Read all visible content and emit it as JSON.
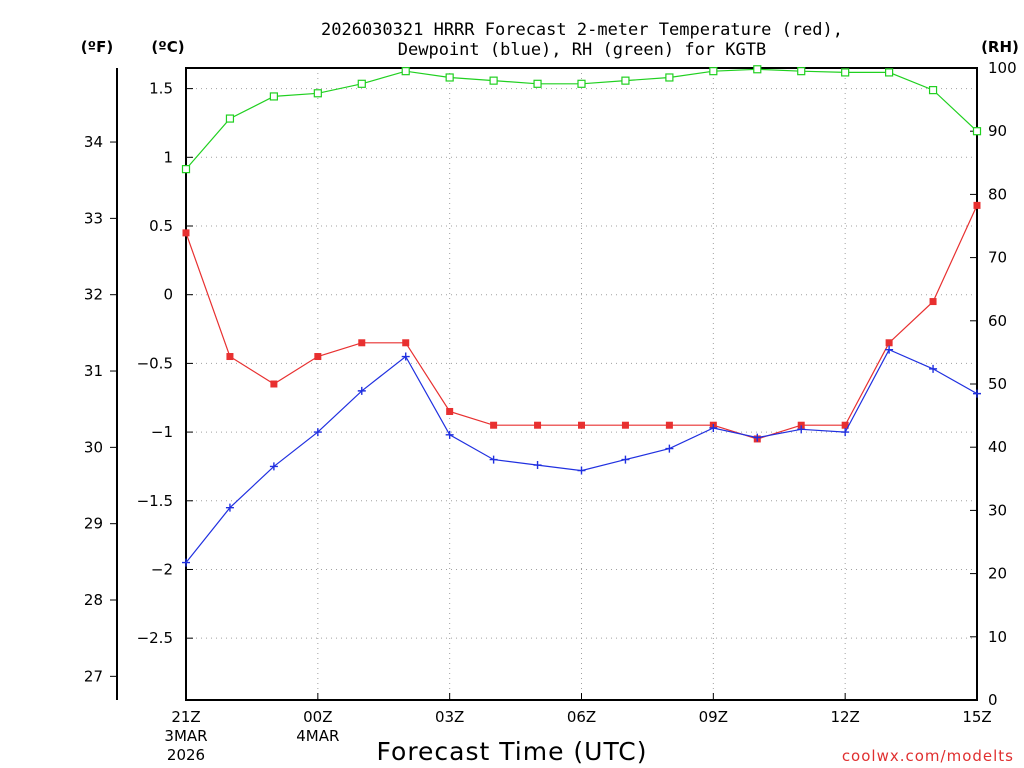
{
  "chart_data": {
    "type": "line",
    "title_line1": "2026030321 HRRR Forecast 2-meter Temperature (red),",
    "title_line2": "Dewpoint (blue), RH (green) for KGTB",
    "xlabel": "Forecast Time (UTC)",
    "credit": "coolwx.com/modelts",
    "units": {
      "fahrenheit": "(ºF)",
      "celsius": "(ºC)",
      "rh": "(RH)"
    },
    "x_hours": [
      0,
      1,
      2,
      3,
      4,
      5,
      6,
      7,
      8,
      9,
      10,
      11,
      12,
      13,
      14,
      15,
      16,
      17,
      18
    ],
    "x_ticks": [
      {
        "hour": 0,
        "label": "21Z",
        "date1": "3MAR",
        "date2": "2026"
      },
      {
        "hour": 3,
        "label": "00Z",
        "date1": "4MAR",
        "date2": ""
      },
      {
        "hour": 6,
        "label": "03Z",
        "date1": "",
        "date2": ""
      },
      {
        "hour": 9,
        "label": "06Z",
        "date1": "",
        "date2": ""
      },
      {
        "hour": 12,
        "label": "09Z",
        "date1": "",
        "date2": ""
      },
      {
        "hour": 15,
        "label": "12Z",
        "date1": "",
        "date2": ""
      },
      {
        "hour": 18,
        "label": "15Z",
        "date1": "",
        "date2": ""
      }
    ],
    "xlim": [
      0,
      18
    ],
    "celsius_axis": {
      "ylim": [
        -2.95,
        1.65
      ],
      "ticks": [
        1.5,
        1,
        0.5,
        0,
        -0.5,
        -1,
        -1.5,
        -2,
        -2.5
      ],
      "tick_labels": [
        "1.5",
        "1",
        "0.5",
        "0",
        "−0.5",
        "−1",
        "−1.5",
        "−2",
        "−2.5"
      ]
    },
    "fahrenheit_axis": {
      "ticks": [
        34,
        33,
        32,
        31,
        30,
        29,
        28,
        27
      ],
      "tick_labels": [
        "34",
        "33",
        "32",
        "31",
        "30",
        "29",
        "28",
        "27"
      ]
    },
    "rh_axis": {
      "ylim": [
        0,
        100
      ],
      "ticks": [
        100,
        90,
        80,
        70,
        60,
        50,
        40,
        30,
        20,
        10,
        0
      ],
      "tick_labels": [
        "100",
        "90",
        "80",
        "70",
        "60",
        "50",
        "40",
        "30",
        "20",
        "10",
        "0"
      ]
    },
    "series": [
      {
        "name": "Temperature",
        "unit": "C",
        "color": "#e83030",
        "marker": "filled-square",
        "values": [
          0.45,
          -0.45,
          -0.65,
          -0.45,
          -0.35,
          -0.35,
          -0.85,
          -0.95,
          -0.95,
          -0.95,
          -0.95,
          -0.95,
          -0.95,
          -1.05,
          -0.95,
          -0.95,
          -0.35,
          -0.05,
          0.65
        ]
      },
      {
        "name": "Dewpoint",
        "unit": "C",
        "color": "#2030e0",
        "marker": "plus",
        "values": [
          -1.95,
          -1.55,
          -1.25,
          -1.0,
          -0.7,
          -0.45,
          -1.02,
          -1.2,
          -1.24,
          -1.28,
          -1.2,
          -1.12,
          -0.97,
          -1.04,
          -0.98,
          -1.0,
          -0.4,
          -0.54,
          -0.72
        ]
      },
      {
        "name": "RH",
        "unit": "%",
        "color": "#20d020",
        "marker": "open-square",
        "values": [
          84,
          92,
          95.5,
          96,
          97.5,
          99.5,
          98.5,
          98,
          97.5,
          97.5,
          98,
          98.5,
          99.5,
          99.8,
          99.5,
          99.3,
          99.3,
          96.5,
          90
        ]
      }
    ]
  }
}
